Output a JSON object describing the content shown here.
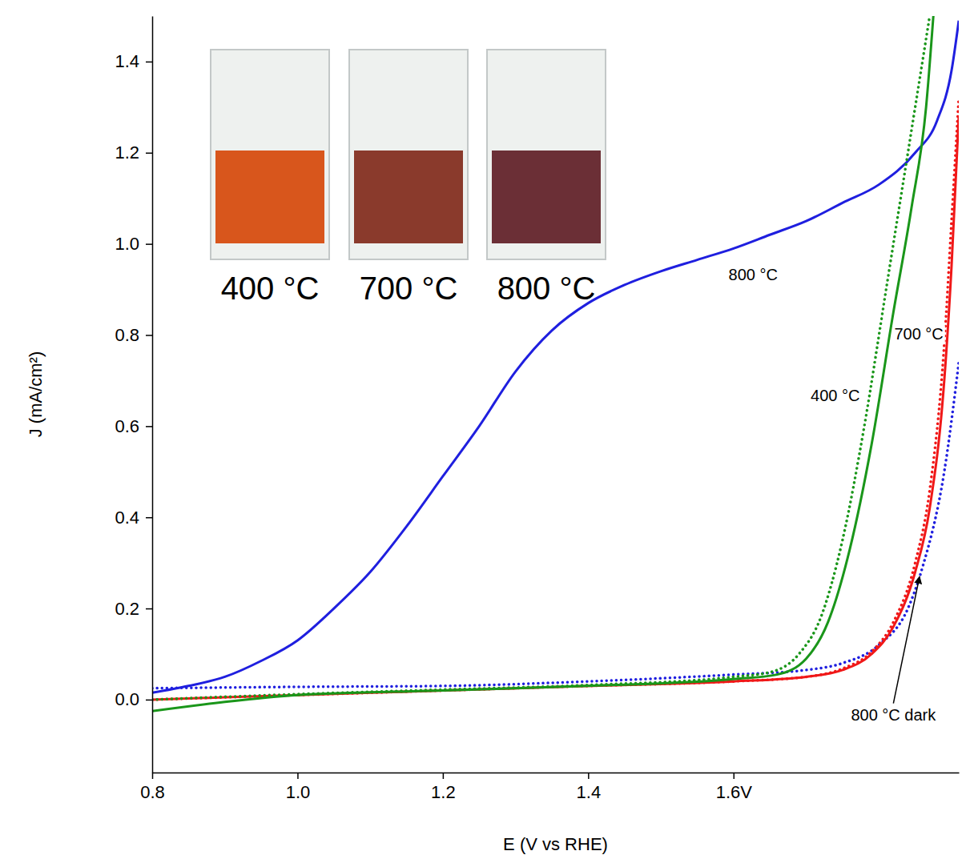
{
  "chart_data": {
    "type": "line",
    "x_label": "E (V vs RHE)",
    "y_label": "J (mA/cm²)",
    "xlim": [
      0.8,
      1.91
    ],
    "ylim": [
      -0.16,
      1.5
    ],
    "xticks": [
      0.8,
      {
        "value": 1.0,
        "label": "1.0"
      },
      1.2,
      1.4,
      {
        "value": 1.6,
        "label": "1.6V"
      }
    ],
    "yticks": [
      {
        "value": 0,
        "label": "0.0"
      },
      0.2,
      0.4,
      0.6,
      0.8,
      {
        "value": 1,
        "label": "1.0"
      },
      1.2,
      1.4
    ],
    "grid": false,
    "series": [
      {
        "color": "#1f1fdf",
        "line_style": "solid",
        "x": [
          0.8,
          0.85,
          0.9,
          0.95,
          1.0,
          1.05,
          1.1,
          1.15,
          1.2,
          1.25,
          1.3,
          1.35,
          1.4,
          1.45,
          1.5,
          1.55,
          1.6,
          1.65,
          1.7,
          1.75,
          1.8,
          1.85,
          1.88,
          1.9,
          1.91
        ],
        "values": [
          0.015,
          0.03,
          0.05,
          0.085,
          0.13,
          0.2,
          0.28,
          0.38,
          0.49,
          0.6,
          0.72,
          0.81,
          0.87,
          0.91,
          0.94,
          0.965,
          0.99,
          1.02,
          1.05,
          1.09,
          1.13,
          1.2,
          1.27,
          1.38,
          1.49
        ]
      },
      {
        "color": "#1f1fdf",
        "line_style": "dotted",
        "x": [
          0.8,
          1.0,
          1.2,
          1.4,
          1.6,
          1.7,
          1.75,
          1.8,
          1.84,
          1.86,
          1.89,
          1.91
        ],
        "values": [
          0.025,
          0.028,
          0.03,
          0.04,
          0.055,
          0.065,
          0.08,
          0.12,
          0.2,
          0.29,
          0.5,
          0.74
        ]
      },
      {
        "color": "#f01818",
        "line_style": "solid",
        "x": [
          0.8,
          1.0,
          1.2,
          1.4,
          1.6,
          1.7,
          1.75,
          1.79,
          1.82,
          1.85,
          1.87,
          1.89,
          1.9,
          1.91
        ],
        "values": [
          0.0,
          0.01,
          0.02,
          0.03,
          0.04,
          0.05,
          0.065,
          0.1,
          0.16,
          0.28,
          0.42,
          0.7,
          0.95,
          1.28
        ]
      },
      {
        "color": "#f01818",
        "line_style": "dotted",
        "x": [
          0.8,
          1.0,
          1.2,
          1.4,
          1.6,
          1.7,
          1.75,
          1.79,
          1.82,
          1.85,
          1.87,
          1.89,
          1.9,
          1.91
        ],
        "values": [
          0.0,
          0.01,
          0.02,
          0.03,
          0.04,
          0.05,
          0.068,
          0.105,
          0.17,
          0.3,
          0.46,
          0.78,
          1.05,
          1.32
        ]
      },
      {
        "color": "#1a961a",
        "line_style": "solid",
        "x": [
          0.8,
          0.9,
          1.0,
          1.2,
          1.4,
          1.6,
          1.66,
          1.7,
          1.73,
          1.76,
          1.79,
          1.82,
          1.845,
          1.865,
          1.875
        ],
        "values": [
          -0.025,
          -0.005,
          0.01,
          0.02,
          0.03,
          0.045,
          0.055,
          0.09,
          0.17,
          0.33,
          0.56,
          0.85,
          1.08,
          1.3,
          1.5
        ]
      },
      {
        "color": "#1a961a",
        "line_style": "dotted",
        "x": [
          0.8,
          1.0,
          1.2,
          1.4,
          1.6,
          1.65,
          1.69,
          1.72,
          1.75,
          1.78,
          1.81,
          1.835,
          1.855,
          1.87
        ],
        "values": [
          0.0,
          0.012,
          0.022,
          0.032,
          0.05,
          0.06,
          0.1,
          0.18,
          0.35,
          0.6,
          0.9,
          1.15,
          1.35,
          1.5
        ]
      }
    ],
    "annotations": [
      {
        "text": "800 °C",
        "x": 1.627,
        "y": 0.92
      },
      {
        "text": "700 °C",
        "x": 1.855,
        "y": 0.79
      },
      {
        "text": "400 °C",
        "x": 1.74,
        "y": 0.655
      },
      {
        "text": "800 °C dark",
        "x": 1.82,
        "y": -0.045,
        "arrow_x": 1.856,
        "arrow_y": 0.27
      }
    ],
    "inset": {
      "labels": [
        "400 °C",
        "700 °C",
        "800 °C"
      ],
      "colors": [
        "#d8561c",
        "#8a3a2c",
        "#6b2f36"
      ]
    }
  }
}
